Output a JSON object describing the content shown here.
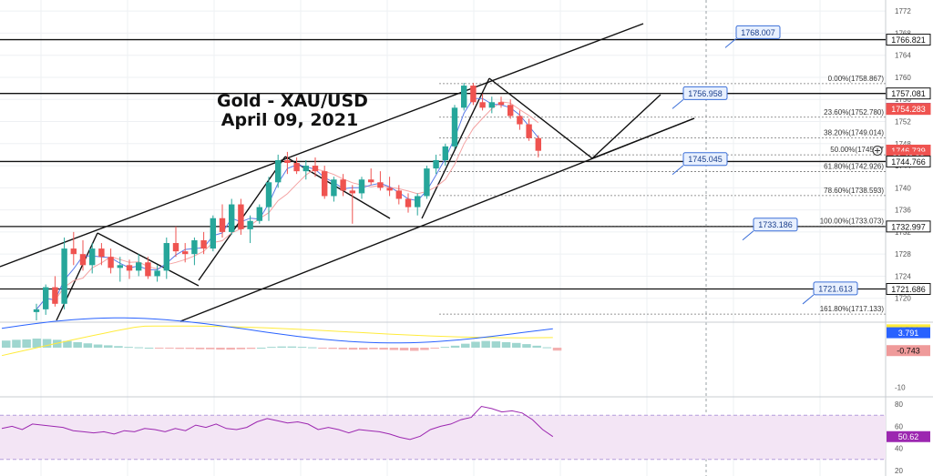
{
  "chart_title": {
    "line1": "Gold - XAU/USD",
    "line2": "April 09, 2021"
  },
  "colors": {
    "up": "#26a69a",
    "down": "#ef5350",
    "sma_fast": "#5b7be8",
    "sma_slow": "#f4a3a3",
    "macd_line": "#2962ff",
    "signal_line": "#ffeb3b",
    "rsi_line": "#9c27b0",
    "rsi_band": "#f3e5f5"
  },
  "price_axis": {
    "range": [
      1716,
      1774
    ],
    "ticks": [
      1772,
      1768,
      1764,
      1760,
      1756,
      1752,
      1748,
      1744,
      1740,
      1736,
      1732,
      1728,
      1724,
      1720
    ],
    "tags": [
      {
        "text": "1766.821",
        "value": 1766.821,
        "bg": "#ffffff",
        "fg": "#111111",
        "border": "#111111"
      },
      {
        "text": "1757.081",
        "value": 1757.081,
        "bg": "#ffffff",
        "fg": "#111111",
        "border": "#111111"
      },
      {
        "text": "1754.308",
        "value": 1754.308,
        "bg": "#2962ff",
        "fg": "#ffffff",
        "border": "#2962ff"
      },
      {
        "text": "1754.283",
        "value": 1754.283,
        "bg": "#ef5350",
        "fg": "#ffffff",
        "border": "#ef5350"
      },
      {
        "text": "1746.739",
        "value": 1746.739,
        "bg": "#ef5350",
        "fg": "#ffffff",
        "border": "#ef5350"
      },
      {
        "text": "01:46:00",
        "value": 1745.5,
        "bg": "#ef5350",
        "fg": "#ffffff",
        "border": "#ef5350"
      },
      {
        "text": "1744.766",
        "value": 1744.766,
        "bg": "#ffffff",
        "fg": "#111111",
        "border": "#111111"
      },
      {
        "text": "1732.997",
        "value": 1732.997,
        "bg": "#ffffff",
        "fg": "#111111",
        "border": "#111111"
      },
      {
        "text": "1721.686",
        "value": 1721.686,
        "bg": "#ffffff",
        "fg": "#111111",
        "border": "#111111"
      }
    ]
  },
  "macd_axis": {
    "range": [
      -12,
      6
    ],
    "ticks": [
      -10
    ],
    "tags": [
      {
        "text": "4.534",
        "value": 4.534,
        "bg": "#ffeb3b",
        "fg": "#111111"
      },
      {
        "text": "3.791",
        "value": 3.791,
        "bg": "#2962ff",
        "fg": "#ffffff"
      },
      {
        "text": "-0.743",
        "value": -0.743,
        "bg": "#ef9a9a",
        "fg": "#111111"
      }
    ]
  },
  "rsi_axis": {
    "range": [
      15,
      85
    ],
    "ticks": [
      80,
      60,
      40,
      20
    ],
    "band": [
      30,
      70
    ],
    "tag": {
      "text": "50.62",
      "value": 50.62,
      "bg": "#9c27b0",
      "fg": "#ffffff"
    }
  },
  "chart_data": {
    "type": "candlestick",
    "symbol": "XAU/USD",
    "ohlc": [
      [
        1717.5,
        1719.0,
        1716.0,
        1718.0
      ],
      [
        1718.0,
        1722.5,
        1717.0,
        1722.0
      ],
      [
        1722.0,
        1724.0,
        1718.5,
        1719.0
      ],
      [
        1719.0,
        1731.0,
        1718.0,
        1729.0
      ],
      [
        1729.0,
        1732.0,
        1726.0,
        1728.0
      ],
      [
        1728.0,
        1730.5,
        1725.0,
        1726.0
      ],
      [
        1726.0,
        1730.0,
        1724.5,
        1729.0
      ],
      [
        1729.0,
        1730.0,
        1726.0,
        1727.5
      ],
      [
        1727.5,
        1729.0,
        1724.5,
        1725.5
      ],
      [
        1725.5,
        1727.5,
        1723.0,
        1726.0
      ],
      [
        1726.0,
        1727.0,
        1723.5,
        1725.0
      ],
      [
        1725.0,
        1728.0,
        1724.0,
        1726.5
      ],
      [
        1726.5,
        1727.5,
        1723.5,
        1724.0
      ],
      [
        1724.0,
        1726.0,
        1723.0,
        1725.0
      ],
      [
        1725.0,
        1731.0,
        1723.5,
        1730.0
      ],
      [
        1730.0,
        1733.0,
        1727.5,
        1728.5
      ],
      [
        1728.5,
        1730.0,
        1726.5,
        1728.0
      ],
      [
        1728.0,
        1731.0,
        1726.0,
        1730.5
      ],
      [
        1730.5,
        1732.0,
        1728.0,
        1729.0
      ],
      [
        1729.0,
        1735.0,
        1728.5,
        1734.5
      ],
      [
        1734.5,
        1737.0,
        1731.0,
        1732.0
      ],
      [
        1732.0,
        1738.0,
        1731.5,
        1737.0
      ],
      [
        1737.0,
        1738.0,
        1731.5,
        1732.5
      ],
      [
        1732.5,
        1735.0,
        1730.0,
        1734.0
      ],
      [
        1734.0,
        1737.0,
        1733.5,
        1736.5
      ],
      [
        1736.5,
        1742.0,
        1734.0,
        1741.0
      ],
      [
        1741.0,
        1746.0,
        1740.0,
        1745.0
      ],
      [
        1745.0,
        1746.5,
        1742.5,
        1744.5
      ],
      [
        1744.5,
        1745.5,
        1742.5,
        1743.0
      ],
      [
        1743.0,
        1745.0,
        1741.5,
        1744.0
      ],
      [
        1744.0,
        1745.5,
        1742.0,
        1743.0
      ],
      [
        1743.0,
        1744.0,
        1738.0,
        1738.5
      ],
      [
        1738.5,
        1742.0,
        1737.5,
        1741.5
      ],
      [
        1741.5,
        1742.5,
        1738.5,
        1739.5
      ],
      [
        1739.5,
        1740.5,
        1733.5,
        1739.0
      ],
      [
        1739.0,
        1742.0,
        1738.0,
        1741.5
      ],
      [
        1741.5,
        1743.5,
        1740.5,
        1741.0
      ],
      [
        1741.0,
        1743.0,
        1739.5,
        1740.0
      ],
      [
        1740.0,
        1742.0,
        1738.5,
        1739.5
      ],
      [
        1739.5,
        1740.5,
        1737.0,
        1738.0
      ],
      [
        1738.0,
        1739.0,
        1735.5,
        1736.5
      ],
      [
        1736.5,
        1739.0,
        1735.0,
        1738.5
      ],
      [
        1738.5,
        1744.0,
        1738.0,
        1743.5
      ],
      [
        1743.5,
        1746.0,
        1742.5,
        1745.0
      ],
      [
        1745.0,
        1748.0,
        1744.0,
        1747.5
      ],
      [
        1747.5,
        1755.0,
        1747.0,
        1754.5
      ],
      [
        1754.5,
        1759.0,
        1754.0,
        1758.5
      ],
      [
        1758.5,
        1759.0,
        1755.0,
        1755.5
      ],
      [
        1755.5,
        1757.0,
        1754.0,
        1754.5
      ],
      [
        1754.5,
        1756.5,
        1753.5,
        1755.5
      ],
      [
        1755.5,
        1756.5,
        1754.5,
        1755.0
      ],
      [
        1755.0,
        1756.0,
        1752.5,
        1753.0
      ],
      [
        1753.0,
        1754.0,
        1750.5,
        1751.5
      ],
      [
        1751.5,
        1752.5,
        1748.5,
        1749.0
      ],
      [
        1749.0,
        1749.5,
        1745.5,
        1746.7
      ]
    ],
    "macd_hist": [
      1.8,
      2.0,
      2.1,
      2.3,
      2.2,
      2.0,
      1.7,
      1.4,
      1.1,
      0.8,
      0.6,
      0.4,
      0.2,
      0.1,
      0.0,
      -0.1,
      -0.2,
      -0.3,
      -0.3,
      -0.4,
      -0.4,
      -0.5,
      -0.5,
      -0.4,
      -0.3,
      0.0,
      0.2,
      0.3,
      0.3,
      0.2,
      0.1,
      -0.2,
      -0.3,
      -0.4,
      -0.5,
      -0.5,
      -0.4,
      -0.5,
      -0.6,
      -0.7,
      -0.8,
      -0.6,
      -0.2,
      0.2,
      0.5,
      1.0,
      1.5,
      1.7,
      1.6,
      1.4,
      1.2,
      0.9,
      0.5,
      0.1,
      -0.743
    ],
    "rsi": [
      58,
      60,
      57,
      62,
      61,
      60,
      59,
      56,
      55,
      54,
      55,
      53,
      56,
      55,
      58,
      57,
      55,
      58,
      56,
      61,
      59,
      62,
      58,
      57,
      59,
      64,
      67,
      65,
      63,
      64,
      62,
      57,
      59,
      57,
      54,
      57,
      56,
      55,
      53,
      50,
      48,
      51,
      57,
      60,
      62,
      66,
      68,
      78,
      76,
      73,
      74,
      72,
      66,
      57,
      50.62
    ],
    "levels": [
      {
        "label": "1768.007",
        "price": 1768.007
      },
      {
        "label": "1756.958",
        "price": 1756.958
      },
      {
        "label": "1745.045",
        "price": 1745.045
      },
      {
        "label": "1733.186",
        "price": 1733.186
      },
      {
        "label": "1721.613",
        "price": 1721.613
      }
    ],
    "fibonacci": [
      {
        "label": "0.00%(1758.867)",
        "price": 1758.867
      },
      {
        "label": "23.60%(1752.780)",
        "price": 1752.78
      },
      {
        "label": "38.20%(1749.014)",
        "price": 1749.014
      },
      {
        "label": "50.00%(1745.97",
        "price": 1745.97
      },
      {
        "label": "61.80%(1742.926)",
        "price": 1742.926
      },
      {
        "label": "78.60%(1738.593)",
        "price": 1738.593
      },
      {
        "label": "100.00%(1733.073)",
        "price": 1733.073
      },
      {
        "label": "161.80%(1717.133)",
        "price": 1717.133
      }
    ],
    "horizontal_lines": [
      1766.821,
      1757.081,
      1744.766,
      1732.997,
      1721.686
    ]
  }
}
